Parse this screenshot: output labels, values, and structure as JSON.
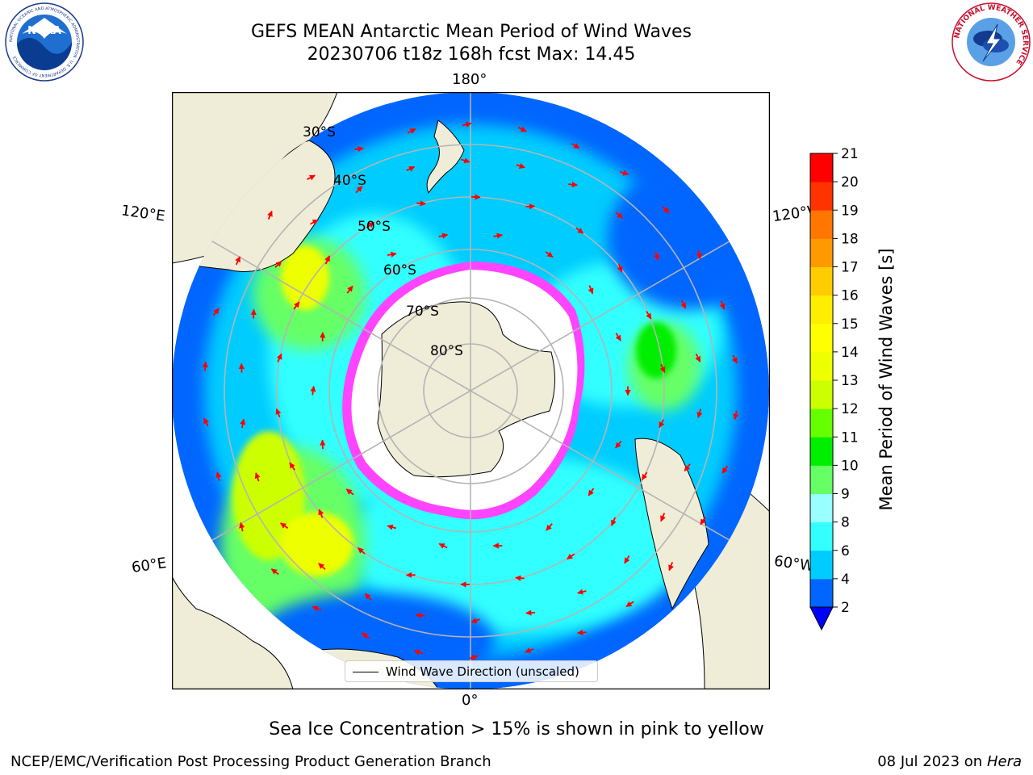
{
  "header": {
    "title_line1": "GEFS MEAN Antarctic Mean Period of Wind Waves",
    "title_line2": "20230706 t18z 168h fcst   Max: 14.45"
  },
  "logos": {
    "noaa_text": "NOAA",
    "noaa_ring_text": "NATIONAL OCEANIC AND ATMOSPHERIC ADMINISTRATION · U.S. DEPARTMENT OF COMMERCE",
    "nws_ring_text": "NATIONAL WEATHER SERVICE"
  },
  "map": {
    "projection": "south-polar-stereographic",
    "longitude_labels": {
      "top": "180°",
      "bottom": "0°",
      "upper_left": "120°E",
      "lower_left": "60°E",
      "upper_right": "120°W",
      "lower_right": "60°W"
    },
    "latitude_labels": [
      "30°S",
      "40°S",
      "50°S",
      "60°S",
      "70°S",
      "80°S"
    ],
    "colors": {
      "land": "#efedd8",
      "ice_fringe": "#ff44ff",
      "vector": "#ff0000",
      "gridline": "#b4b4b4"
    },
    "legend_label": "Wind Wave Direction (unscaled)"
  },
  "colorbar": {
    "label": "Mean Period of Wind Waves [s]",
    "ticks": [
      "2",
      "4",
      "6",
      "8",
      "9",
      "10",
      "11",
      "12",
      "13",
      "14",
      "15",
      "16",
      "17",
      "18",
      "19",
      "20",
      "21"
    ],
    "colors": [
      "#0066ff",
      "#00ccff",
      "#33ffff",
      "#99ffff",
      "#66ff66",
      "#00ee00",
      "#66ff00",
      "#ccff00",
      "#eeff00",
      "#ffff00",
      "#ffee00",
      "#ffcc00",
      "#ff9900",
      "#ff7700",
      "#ff3300",
      "#ff0000"
    ],
    "under_color": "#0000ff"
  },
  "footer": {
    "caption": "Sea Ice Concentration > 15% is shown in pink to yellow",
    "credit": "NCEP/EMC/Verification Post Processing Product Generation Branch",
    "date": "08 Jul 2023 on ",
    "machine": "Hera"
  }
}
